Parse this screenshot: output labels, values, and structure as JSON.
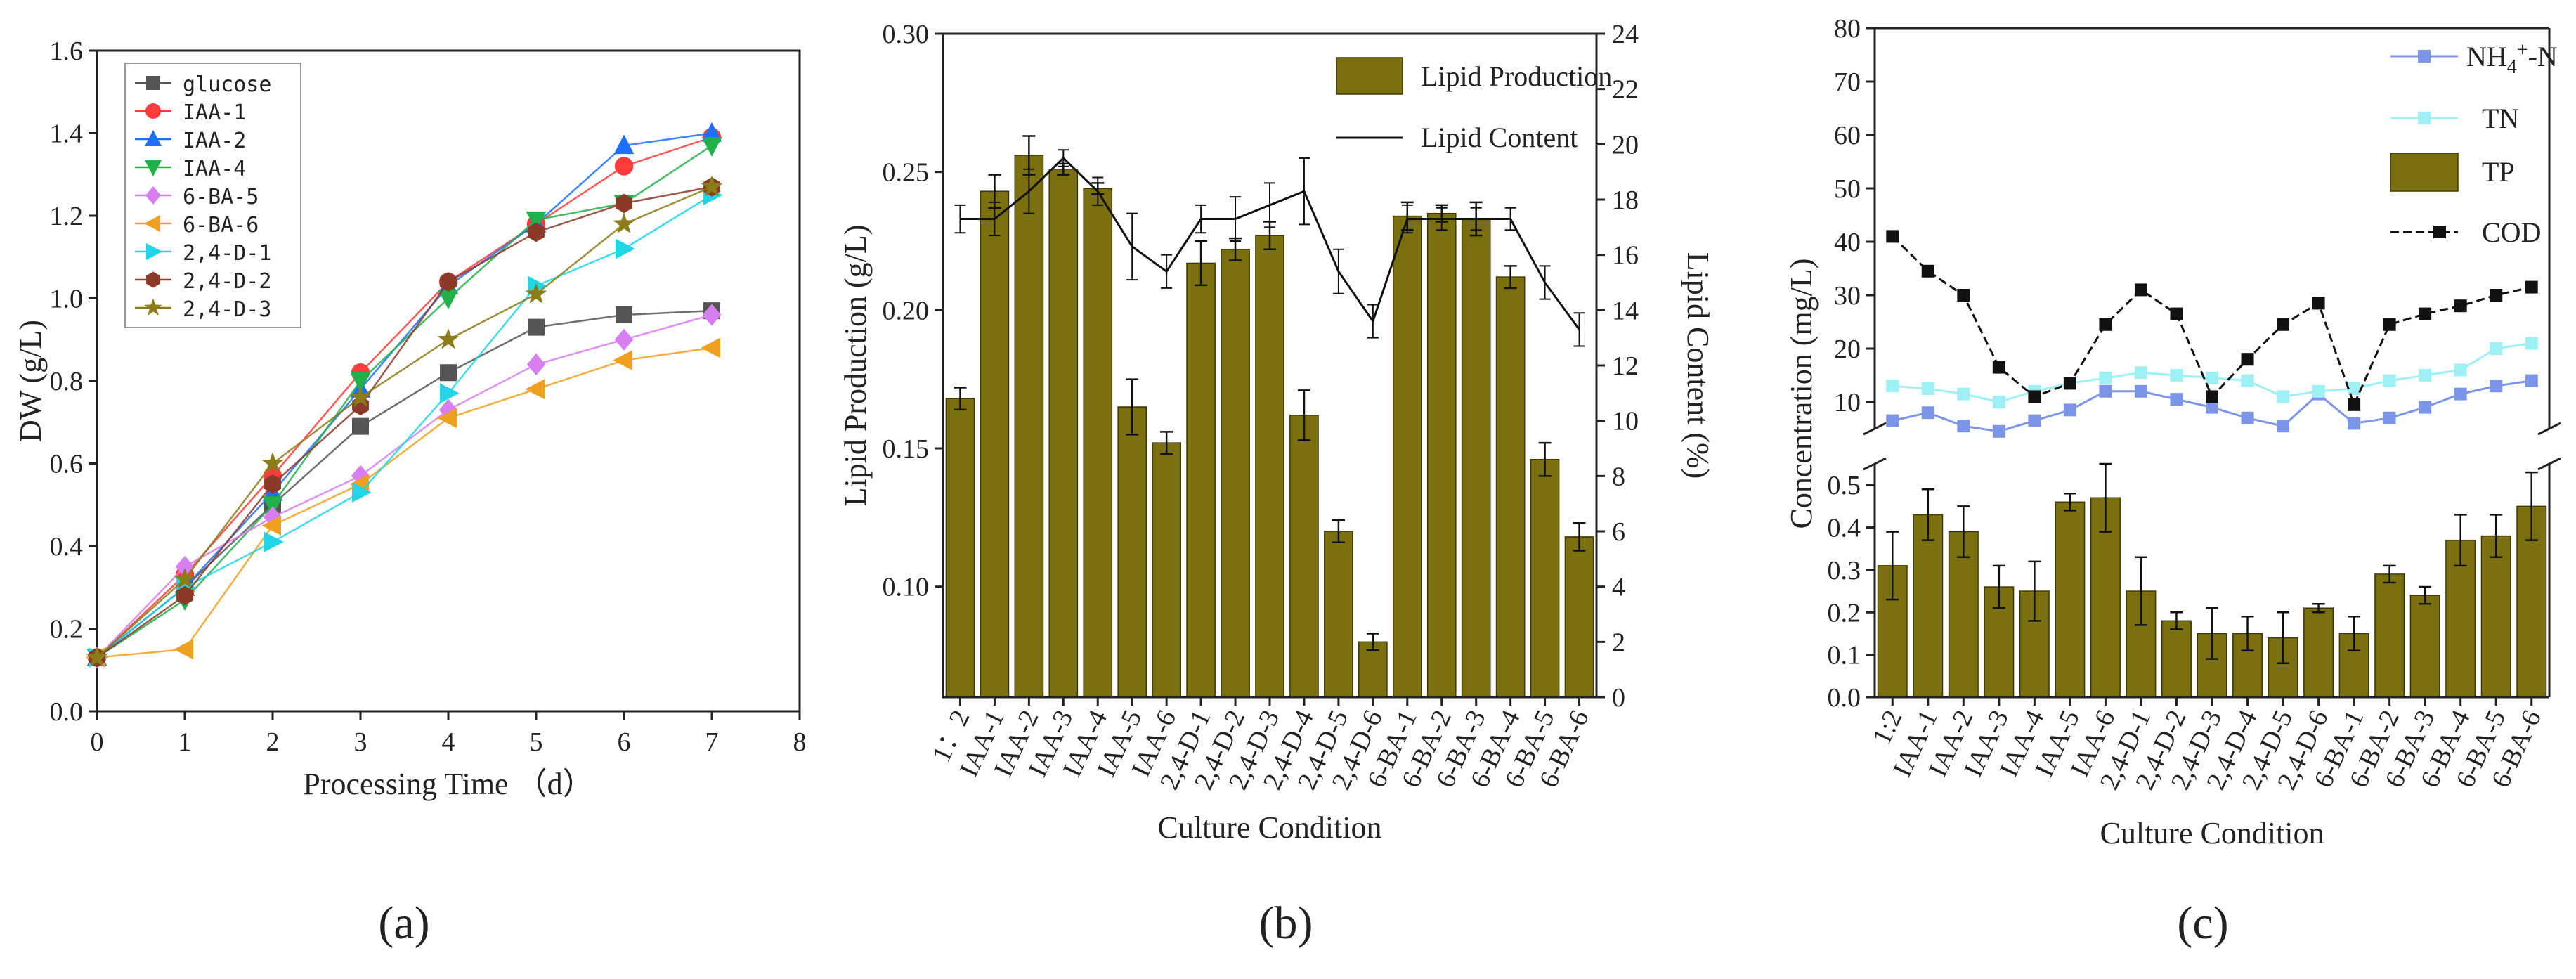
{
  "colors": {
    "bar": "#7a7010",
    "bar_stroke": "#3d3700",
    "axis": "#222222",
    "glucose": "#555555",
    "IAA-1": "#ff3b3b",
    "IAA-2": "#1f6fff",
    "IAA-4": "#22b04b",
    "6-BA-5": "#d77ff0",
    "6-BA-6": "#f0a020",
    "2,4-D-1": "#20d6e6",
    "2,4-D-2": "#8b3a2a",
    "2,4-D-3": "#8a7c18",
    "nh4": "#7d95e8",
    "tn": "#9ff0f5",
    "cod": "#111111"
  },
  "captions": [
    "(a)",
    "(b)",
    "(c)"
  ],
  "chart_data": [
    {
      "type": "line",
      "xlabel": "Processing Time （d）",
      "ylabel": "DW (g/L)",
      "xlim": [
        0,
        8
      ],
      "ylim": [
        0,
        1.6
      ],
      "xticks": [
        "0",
        "1",
        "2",
        "3",
        "4",
        "5",
        "6",
        "7",
        "8"
      ],
      "yticks": [
        "0.0",
        "0.2",
        "0.4",
        "0.6",
        "0.8",
        "1.0",
        "1.2",
        "1.4",
        "1.6"
      ],
      "legend_position": "top-left",
      "x": [
        0,
        1,
        2,
        3,
        4,
        5,
        6,
        7
      ],
      "series": [
        {
          "name": "glucose",
          "marker": "square",
          "values": [
            0.13,
            0.3,
            0.5,
            0.69,
            0.82,
            0.93,
            0.96,
            0.97
          ]
        },
        {
          "name": "IAA-1",
          "marker": "circle",
          "values": [
            0.13,
            0.33,
            0.57,
            0.82,
            1.04,
            1.18,
            1.32,
            1.39
          ]
        },
        {
          "name": "IAA-2",
          "marker": "triangle-up",
          "values": [
            0.13,
            0.3,
            0.53,
            0.78,
            1.03,
            1.18,
            1.37,
            1.4
          ]
        },
        {
          "name": "IAA-4",
          "marker": "triangle-down",
          "values": [
            0.13,
            0.27,
            0.5,
            0.8,
            1.0,
            1.19,
            1.23,
            1.37
          ]
        },
        {
          "name": "6-BA-5",
          "marker": "diamond",
          "values": [
            0.13,
            0.35,
            0.47,
            0.57,
            0.73,
            0.84,
            0.9,
            0.96
          ]
        },
        {
          "name": "6-BA-6",
          "marker": "triangle-left",
          "values": [
            0.13,
            0.15,
            0.45,
            0.55,
            0.71,
            0.78,
            0.85,
            0.88
          ]
        },
        {
          "name": "2,4-D-1",
          "marker": "triangle-right",
          "values": [
            0.13,
            0.3,
            0.41,
            0.53,
            0.77,
            1.03,
            1.12,
            1.25
          ]
        },
        {
          "name": "2,4-D-2",
          "marker": "hexagon",
          "values": [
            0.13,
            0.28,
            0.55,
            0.74,
            1.04,
            1.16,
            1.23,
            1.27
          ]
        },
        {
          "name": "2,4-D-3",
          "marker": "star",
          "values": [
            0.13,
            0.32,
            0.6,
            0.76,
            0.9,
            1.01,
            1.18,
            1.27
          ]
        }
      ]
    },
    {
      "type": "bar",
      "xlabel": "Culture Condition",
      "ylabel": "Lipid Production (g/L)",
      "y2label": "Lipid Content (%)",
      "ylim": [
        0.06,
        0.3
      ],
      "y2lim": [
        0,
        24
      ],
      "yticks": [
        "0.10",
        "0.15",
        "0.20",
        "0.25",
        "0.30"
      ],
      "y2ticks": [
        "0",
        "2",
        "4",
        "6",
        "8",
        "10",
        "12",
        "14",
        "16",
        "18",
        "20",
        "22",
        "24"
      ],
      "legend_position": "top-right",
      "categories": [
        "1：2",
        "IAA-1",
        "IAA-2",
        "IAA-3",
        "IAA-4",
        "IAA-5",
        "IAA-6",
        "2,4-D-1",
        "2,4-D-2",
        "2,4-D-3",
        "2,4-D-4",
        "2,4-D-5",
        "2,4-D-6",
        "6-BA-1",
        "6-BA-2",
        "6-BA-3",
        "6-BA-4",
        "6-BA-5",
        "6-BA-6"
      ],
      "series": [
        {
          "name": "Lipid Production",
          "kind": "bar",
          "axis": "left",
          "values": [
            0.168,
            0.243,
            0.256,
            0.251,
            0.244,
            0.165,
            0.152,
            0.217,
            0.222,
            0.227,
            0.162,
            0.12,
            0.08,
            0.234,
            0.235,
            0.233,
            0.212,
            0.146,
            0.118
          ],
          "errors": [
            0.004,
            0.006,
            0.007,
            0.002,
            0.002,
            0.01,
            0.004,
            0.008,
            0.004,
            0.005,
            0.009,
            0.004,
            0.003,
            0.005,
            0.003,
            0.006,
            0.004,
            0.006,
            0.005
          ]
        },
        {
          "name": "Lipid Content",
          "kind": "line",
          "axis": "right",
          "values": [
            17.3,
            17.3,
            18.3,
            19.5,
            18.3,
            16.3,
            15.4,
            17.3,
            17.3,
            17.8,
            18.3,
            15.4,
            13.6,
            17.3,
            17.3,
            17.3,
            17.3,
            15.0,
            13.3
          ],
          "errors": [
            0.5,
            0.6,
            0.8,
            0.3,
            0.5,
            1.2,
            0.6,
            0.5,
            0.8,
            0.8,
            1.2,
            0.8,
            0.6,
            0.5,
            0.4,
            0.4,
            0.4,
            0.6,
            0.6
          ]
        }
      ]
    },
    {
      "type": "bar",
      "xlabel": "Culture Condition",
      "ylabel": "Concentration (mg/L)",
      "broken_axis": true,
      "lower_ylim": [
        0,
        0.55
      ],
      "upper_ylim": [
        5,
        80
      ],
      "lower_yticks": [
        "0.0",
        "0.1",
        "0.2",
        "0.3",
        "0.4",
        "0.5"
      ],
      "upper_yticks": [
        "10",
        "20",
        "30",
        "40",
        "50",
        "60",
        "70",
        "80"
      ],
      "legend_position": "top-right",
      "categories": [
        "1:2",
        "IAA-1",
        "IAA-2",
        "IAA-3",
        "IAA-4",
        "IAA-5",
        "IAA-6",
        "2,4-D-1",
        "2,4-D-2",
        "2,4-D-3",
        "2,4-D-4",
        "2,4-D-5",
        "2,4-D-6",
        "6-BA-1",
        "6-BA-2",
        "6-BA-3",
        "6-BA-4",
        "6-BA-5",
        "6-BA-6"
      ],
      "series": [
        {
          "name": "NH4+-N",
          "legend_label": "NH",
          "legend_sub": "4",
          "legend_sup": "+",
          "legend_tail": "-N",
          "kind": "line",
          "marker": "square",
          "values": [
            6.5,
            8.0,
            5.5,
            4.5,
            6.5,
            8.5,
            12.0,
            12.0,
            10.5,
            9.0,
            7.0,
            5.5,
            11.5,
            6.0,
            7.0,
            9.0,
            11.5,
            13.0,
            14.0
          ]
        },
        {
          "name": "TN",
          "kind": "line",
          "marker": "square",
          "values": [
            13.0,
            12.5,
            11.5,
            10.0,
            12.0,
            13.5,
            14.5,
            15.5,
            15.0,
            14.5,
            14.0,
            11.0,
            12.0,
            12.5,
            14.0,
            15.0,
            16.0,
            20.0,
            21.0
          ]
        },
        {
          "name": "TP",
          "kind": "bar",
          "values": [
            0.31,
            0.43,
            0.39,
            0.26,
            0.25,
            0.46,
            0.47,
            0.25,
            0.18,
            0.15,
            0.15,
            0.14,
            0.21,
            0.15,
            0.29,
            0.24,
            0.37,
            0.38,
            0.45
          ],
          "errors": [
            0.08,
            0.06,
            0.06,
            0.05,
            0.07,
            0.02,
            0.08,
            0.08,
            0.02,
            0.06,
            0.04,
            0.06,
            0.01,
            0.04,
            0.02,
            0.02,
            0.06,
            0.05,
            0.08
          ]
        },
        {
          "name": "COD",
          "kind": "line",
          "marker": "square",
          "values": [
            41.0,
            34.5,
            30.0,
            16.5,
            11.0,
            13.5,
            24.5,
            31.0,
            26.5,
            11.0,
            18.0,
            24.5,
            28.5,
            9.5,
            24.5,
            26.5,
            28.0,
            30.0,
            31.5
          ]
        }
      ]
    }
  ]
}
